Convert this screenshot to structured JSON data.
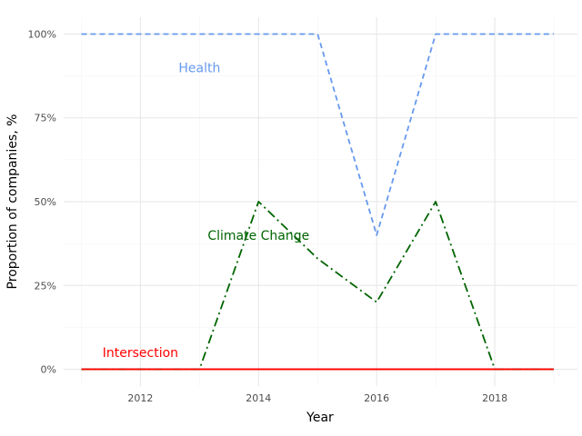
{
  "chart_data": {
    "type": "line",
    "xlabel": "Year",
    "ylabel": "Proportion of companies, %",
    "xlim": [
      2010.7,
      2019.4
    ],
    "ylim": [
      -0.05,
      1.05
    ],
    "x_ticks": [
      2012,
      2014,
      2016,
      2018
    ],
    "x_tick_labels": [
      "2012",
      "2014",
      "2016",
      "2018"
    ],
    "y_ticks": [
      0,
      0.25,
      0.5,
      0.75,
      1.0
    ],
    "y_tick_labels": [
      "0%",
      "25%",
      "50%",
      "75%",
      "100%"
    ],
    "grid": true,
    "legend": "none",
    "x": [
      2011,
      2012,
      2013,
      2014,
      2015,
      2016,
      2017,
      2018,
      2019
    ],
    "series": [
      {
        "name": "Health",
        "color": "#6699ee",
        "line_style": "dashed",
        "values": [
          1.0,
          1.0,
          1.0,
          1.0,
          1.0,
          0.4,
          1.0,
          1.0,
          1.0
        ],
        "label_x": 2013.0,
        "label_y": 0.9
      },
      {
        "name": "Climate Change",
        "color": "#006400",
        "line_style": "dashdot",
        "values": [
          0.0,
          0.0,
          0.0,
          0.5,
          0.33,
          0.2,
          0.5,
          0.0,
          0.0
        ],
        "label_x": 2014.0,
        "label_y": 0.4
      },
      {
        "name": "Intersection",
        "color": "#ff0000",
        "line_style": "solid",
        "values": [
          0.0,
          0.0,
          0.0,
          0.0,
          0.0,
          0.0,
          0.0,
          0.0,
          0.0
        ],
        "label_x": 2012.0,
        "label_y": 0.05
      }
    ]
  }
}
